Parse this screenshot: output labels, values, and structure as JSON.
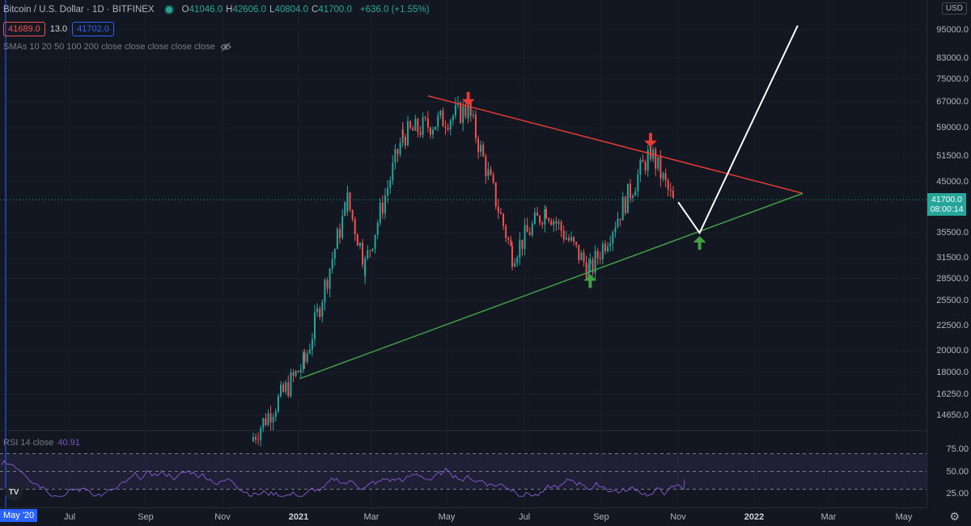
{
  "header": {
    "symbol": "Bitcoin / U.S. Dollar · 1D · BITFINEX",
    "ohlc": [
      {
        "k": "O",
        "v": "41046.0"
      },
      {
        "k": "H",
        "v": "42606.0"
      },
      {
        "k": "L",
        "v": "40804.0"
      },
      {
        "k": "C",
        "v": "41700.0"
      }
    ],
    "change": "+636.0 (+1.55%)",
    "bid": "41689.0",
    "spread": "13.0",
    "ask": "41702.0",
    "sma_label": "SMAs 10 20 50 100 200 close close close close close"
  },
  "price_axis": {
    "currency": "USD",
    "ticks": [
      "95000.0",
      "83000.0",
      "75000.0",
      "67000.0",
      "59000.0",
      "51500.0",
      "45000.0",
      "35500.0",
      "31500.0",
      "28500.0",
      "25500.0",
      "22500.0",
      "20000.0",
      "18000.0",
      "16250.0",
      "14650.0"
    ],
    "rsi_ticks": [
      "75.00",
      "50.00",
      "25.00"
    ],
    "last_price": "41700.0",
    "countdown": "08:00:14"
  },
  "time_axis": {
    "range_label": "May '20",
    "ticks": [
      {
        "label": "Jul",
        "bold": false
      },
      {
        "label": "Sep",
        "bold": false
      },
      {
        "label": "Nov",
        "bold": false
      },
      {
        "label": "2021",
        "bold": true
      },
      {
        "label": "Mar",
        "bold": false
      },
      {
        "label": "May",
        "bold": false
      },
      {
        "label": "Jul",
        "bold": false
      },
      {
        "label": "Sep",
        "bold": false
      },
      {
        "label": "Nov",
        "bold": false
      },
      {
        "label": "2022",
        "bold": true
      },
      {
        "label": "Mar",
        "bold": false
      },
      {
        "label": "May",
        "bold": false
      }
    ]
  },
  "rsi": {
    "label": "RSI 14 close",
    "value": "40.91"
  },
  "logo": "TV",
  "colors": {
    "bg": "#131722",
    "up": "#26a69a",
    "down": "#ef5350",
    "resistance": "#e53935",
    "support": "#43a047",
    "projection": "#ffffff",
    "rsi": "#7e57c2"
  },
  "chart_data": {
    "type": "candlestick",
    "symbol": "BTCUSD",
    "scale": "log",
    "ylim": [
      14000,
      110000
    ],
    "key_points": [
      {
        "date": "2020-10-25",
        "price": 13200
      },
      {
        "date": "2020-12-05",
        "price": 19000
      },
      {
        "date": "2021-01-08",
        "price": 41500
      },
      {
        "date": "2021-01-22",
        "price": 30500
      },
      {
        "date": "2021-02-21",
        "price": 57000
      },
      {
        "date": "2021-04-14",
        "price": 64500
      },
      {
        "date": "2021-05-19",
        "price": 32000
      },
      {
        "date": "2021-06-15",
        "price": 40000
      },
      {
        "date": "2021-07-20",
        "price": 29500
      },
      {
        "date": "2021-09-06",
        "price": 52800
      },
      {
        "date": "2021-09-25",
        "price": 40500
      }
    ],
    "trendlines": [
      {
        "name": "resistance",
        "from": {
          "date": "2021-03-13",
          "price": 69000
        },
        "to": {
          "date": "2022-01-05",
          "price": 43000
        }
      },
      {
        "name": "support",
        "from": {
          "date": "2020-12-01",
          "price": 17500
        },
        "to": {
          "date": "2022-01-05",
          "price": 43000
        }
      }
    ],
    "projection": [
      {
        "date": "2021-09-28",
        "price": 41200
      },
      {
        "date": "2021-10-15",
        "price": 35500
      },
      {
        "date": "2022-01-01",
        "price": 97000
      }
    ],
    "markers": [
      {
        "type": "down-arrow",
        "date": "2021-04-14",
        "price": 64500
      },
      {
        "type": "down-arrow",
        "date": "2021-09-06",
        "price": 52800
      },
      {
        "type": "up-arrow",
        "date": "2021-07-20",
        "price": 29500
      },
      {
        "type": "up-arrow",
        "date": "2021-10-15",
        "price": 35500
      }
    ],
    "rsi": {
      "levels": [
        70,
        50,
        30
      ],
      "last": 40.91
    }
  }
}
